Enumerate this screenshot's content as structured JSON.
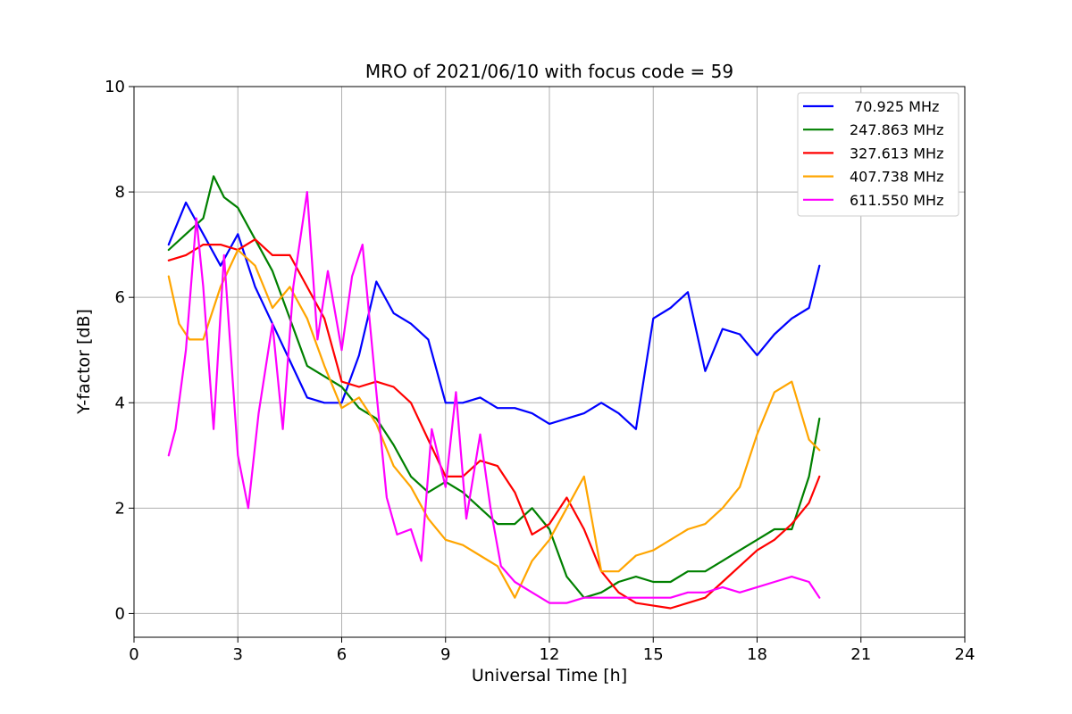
{
  "chart_data": {
    "type": "line",
    "title": "MRO of 2021/06/10 with focus code = 59",
    "xlabel": "Universal Time [h]",
    "ylabel": "Y-factor [dB]",
    "xlim": [
      0,
      24
    ],
    "ylim": [
      -0.45,
      10
    ],
    "xticks": [
      0,
      3,
      6,
      9,
      12,
      15,
      18,
      21,
      24
    ],
    "xtick_labels": [
      "0",
      "3",
      "6",
      "9",
      "12",
      "15",
      "18",
      "21",
      "24"
    ],
    "yticks": [
      0,
      2,
      4,
      6,
      8,
      10
    ],
    "ytick_labels": [
      "0",
      "2",
      "4",
      "6",
      "8",
      "10"
    ],
    "grid": true,
    "legend_position": "top-right",
    "series": [
      {
        "name": " 70.925 MHz",
        "color": "#0000ff",
        "x": [
          1.0,
          1.5,
          2.0,
          2.5,
          3.0,
          3.5,
          4.0,
          4.5,
          5.0,
          5.5,
          6.0,
          6.5,
          7.0,
          7.5,
          8.0,
          8.5,
          9.0,
          9.5,
          10.0,
          10.5,
          11.0,
          11.5,
          12.0,
          12.5,
          13.0,
          13.5,
          14.0,
          14.5,
          15.0,
          15.5,
          16.0,
          16.5,
          17.0,
          17.5,
          18.0,
          18.5,
          19.0,
          19.5,
          19.8
        ],
        "y": [
          7.0,
          7.8,
          7.2,
          6.6,
          7.2,
          6.2,
          5.5,
          4.8,
          4.1,
          4.0,
          4.0,
          4.9,
          6.3,
          5.7,
          5.5,
          5.2,
          4.0,
          4.0,
          4.1,
          3.9,
          3.9,
          3.8,
          3.6,
          3.7,
          3.8,
          4.0,
          3.8,
          3.5,
          5.6,
          5.8,
          6.1,
          4.6,
          5.4,
          5.3,
          4.9,
          5.3,
          5.6,
          5.8,
          6.6
        ]
      },
      {
        "name": "247.863 MHz",
        "color": "#008000",
        "x": [
          1.0,
          1.5,
          2.0,
          2.3,
          2.6,
          3.0,
          3.5,
          4.0,
          4.5,
          5.0,
          5.5,
          6.0,
          6.5,
          7.0,
          7.5,
          8.0,
          8.5,
          9.0,
          9.5,
          10.0,
          10.5,
          11.0,
          11.5,
          12.0,
          12.5,
          13.0,
          13.5,
          14.0,
          14.5,
          15.0,
          15.5,
          16.0,
          16.5,
          17.0,
          17.5,
          18.0,
          18.5,
          19.0,
          19.5,
          19.8
        ],
        "y": [
          6.9,
          7.2,
          7.5,
          8.3,
          7.9,
          7.7,
          7.1,
          6.5,
          5.6,
          4.7,
          4.5,
          4.3,
          3.9,
          3.7,
          3.2,
          2.6,
          2.3,
          2.5,
          2.3,
          2.0,
          1.7,
          1.7,
          2.0,
          1.6,
          0.7,
          0.3,
          0.4,
          0.6,
          0.7,
          0.6,
          0.6,
          0.8,
          0.8,
          1.0,
          1.2,
          1.4,
          1.6,
          1.6,
          2.6,
          3.7
        ]
      },
      {
        "name": "327.613 MHz",
        "color": "#ff0000",
        "x": [
          1.0,
          1.5,
          2.0,
          2.5,
          3.0,
          3.5,
          4.0,
          4.5,
          5.0,
          5.5,
          6.0,
          6.5,
          7.0,
          7.5,
          8.0,
          8.5,
          9.0,
          9.5,
          10.0,
          10.5,
          11.0,
          11.5,
          12.0,
          12.5,
          13.0,
          13.5,
          14.0,
          14.5,
          15.0,
          15.5,
          16.0,
          16.5,
          17.0,
          17.5,
          18.0,
          18.5,
          19.0,
          19.5,
          19.8
        ],
        "y": [
          6.7,
          6.8,
          7.0,
          7.0,
          6.9,
          7.1,
          6.8,
          6.8,
          6.2,
          5.6,
          4.4,
          4.3,
          4.4,
          4.3,
          4.0,
          3.3,
          2.6,
          2.6,
          2.9,
          2.8,
          2.3,
          1.5,
          1.7,
          2.2,
          1.6,
          0.8,
          0.4,
          0.2,
          0.15,
          0.1,
          0.2,
          0.3,
          0.6,
          0.9,
          1.2,
          1.4,
          1.7,
          2.1,
          2.6
        ]
      },
      {
        "name": "407.738 MHz",
        "color": "#ffa500",
        "x": [
          1.0,
          1.3,
          1.6,
          2.0,
          2.5,
          3.0,
          3.5,
          4.0,
          4.5,
          5.0,
          5.5,
          6.0,
          6.5,
          7.0,
          7.5,
          8.0,
          8.5,
          9.0,
          9.5,
          10.0,
          10.5,
          11.0,
          11.5,
          12.0,
          12.5,
          13.0,
          13.5,
          14.0,
          14.5,
          15.0,
          15.5,
          16.0,
          16.5,
          17.0,
          17.5,
          18.0,
          18.5,
          19.0,
          19.5,
          19.8
        ],
        "y": [
          6.4,
          5.5,
          5.2,
          5.2,
          6.2,
          6.9,
          6.6,
          5.8,
          6.2,
          5.6,
          4.7,
          3.9,
          4.1,
          3.6,
          2.8,
          2.4,
          1.8,
          1.4,
          1.3,
          1.1,
          0.9,
          0.3,
          1.0,
          1.4,
          2.0,
          2.6,
          0.8,
          0.8,
          1.1,
          1.2,
          1.4,
          1.6,
          1.7,
          2.0,
          2.4,
          3.4,
          4.2,
          4.4,
          3.3,
          3.1
        ]
      },
      {
        "name": "611.550 MHz",
        "color": "#ff00ff",
        "x": [
          1.0,
          1.2,
          1.5,
          1.8,
          2.0,
          2.3,
          2.6,
          3.0,
          3.3,
          3.6,
          4.0,
          4.3,
          4.6,
          5.0,
          5.3,
          5.6,
          6.0,
          6.3,
          6.6,
          7.0,
          7.3,
          7.6,
          8.0,
          8.3,
          8.6,
          9.0,
          9.3,
          9.6,
          10.0,
          10.3,
          10.6,
          11.0,
          11.5,
          12.0,
          12.5,
          13.0,
          13.5,
          14.0,
          14.5,
          15.0,
          15.5,
          16.0,
          16.5,
          17.0,
          17.5,
          18.0,
          18.5,
          19.0,
          19.5,
          19.8
        ],
        "y": [
          3.0,
          3.5,
          5.0,
          7.5,
          6.2,
          3.5,
          6.8,
          3.0,
          2.0,
          3.8,
          5.5,
          3.5,
          6.2,
          8.0,
          5.2,
          6.5,
          5.0,
          6.4,
          7.0,
          4.2,
          2.2,
          1.5,
          1.6,
          1.0,
          3.5,
          2.4,
          4.2,
          1.8,
          3.4,
          2.0,
          0.9,
          0.6,
          0.4,
          0.2,
          0.2,
          0.3,
          0.3,
          0.3,
          0.3,
          0.3,
          0.3,
          0.4,
          0.4,
          0.5,
          0.4,
          0.5,
          0.6,
          0.7,
          0.6,
          0.3
        ]
      }
    ]
  }
}
